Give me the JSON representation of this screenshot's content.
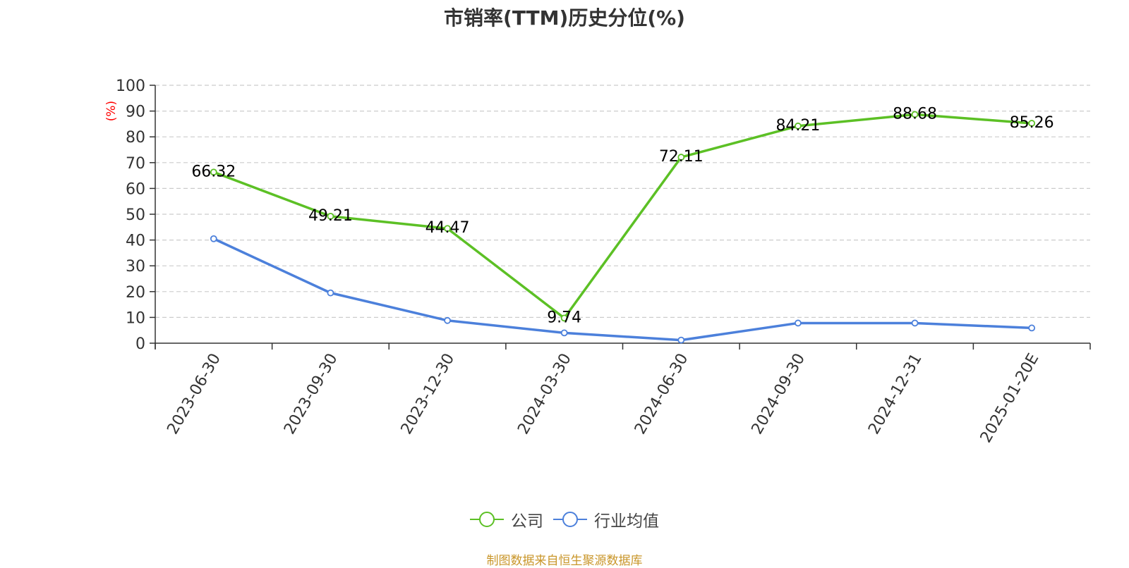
{
  "title": "市销率(TTM)历史分位(%)",
  "source": "制图数据来自恒生聚源数据库",
  "colors": {
    "company": "#5cc025",
    "industry": "#4c80db",
    "axis": "#333333",
    "grid": "#cccccc",
    "unit": "#ff0000"
  },
  "chart_data": {
    "type": "line",
    "title": "市销率(TTM)历史分位(%)",
    "xlabel": "",
    "ylabel": "(%)",
    "ylim": [
      0,
      100
    ],
    "yticks": [
      0,
      10,
      20,
      30,
      40,
      50,
      60,
      70,
      80,
      90,
      100
    ],
    "grid": true,
    "legend_position": "bottom",
    "categories": [
      "2023-06-30",
      "2023-09-30",
      "2023-12-30",
      "2024-03-30",
      "2024-06-30",
      "2024-09-30",
      "2024-12-31",
      "2025-01-20E"
    ],
    "series": [
      {
        "name": "公司",
        "values": [
          66.32,
          49.21,
          44.47,
          9.74,
          72.11,
          84.21,
          88.68,
          85.26
        ],
        "labels": [
          "66.32",
          "49.21",
          "44.47",
          "9.74",
          "72.11",
          "84.21",
          "88.68",
          "85.26"
        ],
        "show_labels": true
      },
      {
        "name": "行业均值",
        "values": [
          40.5,
          19.5,
          8.8,
          4.0,
          1.2,
          7.8,
          7.8,
          5.9
        ],
        "show_labels": false
      }
    ]
  }
}
